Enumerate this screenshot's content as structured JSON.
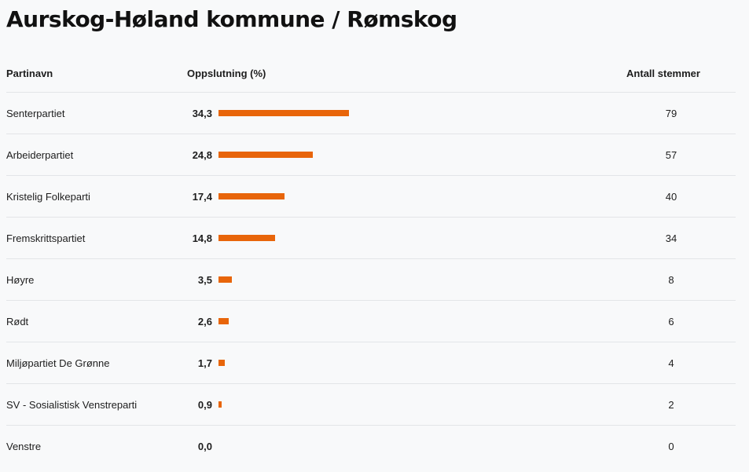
{
  "page": {
    "title": "Aurskog-Høland kommune / Rømskog"
  },
  "table": {
    "headers": {
      "name": "Partinavn",
      "percent": "Oppslutning (%)",
      "votes": "Antall stemmer"
    },
    "bar_color": "#e8650a",
    "max_percent_scale": 100,
    "rows": [
      {
        "name": "Senterpartiet",
        "percent_label": "34,3",
        "percent": 34.3,
        "votes": "79"
      },
      {
        "name": "Arbeiderpartiet",
        "percent_label": "24,8",
        "percent": 24.8,
        "votes": "57"
      },
      {
        "name": "Kristelig Folkeparti",
        "percent_label": "17,4",
        "percent": 17.4,
        "votes": "40"
      },
      {
        "name": "Fremskrittspartiet",
        "percent_label": "14,8",
        "percent": 14.8,
        "votes": "34"
      },
      {
        "name": "Høyre",
        "percent_label": "3,5",
        "percent": 3.5,
        "votes": "8"
      },
      {
        "name": "Rødt",
        "percent_label": "2,6",
        "percent": 2.6,
        "votes": "6"
      },
      {
        "name": "Miljøpartiet De Grønne",
        "percent_label": "1,7",
        "percent": 1.7,
        "votes": "4"
      },
      {
        "name": "SV - Sosialistisk Venstreparti",
        "percent_label": "0,9",
        "percent": 0.9,
        "votes": "2"
      },
      {
        "name": "Venstre",
        "percent_label": "0,0",
        "percent": 0.0,
        "votes": "0"
      }
    ]
  }
}
